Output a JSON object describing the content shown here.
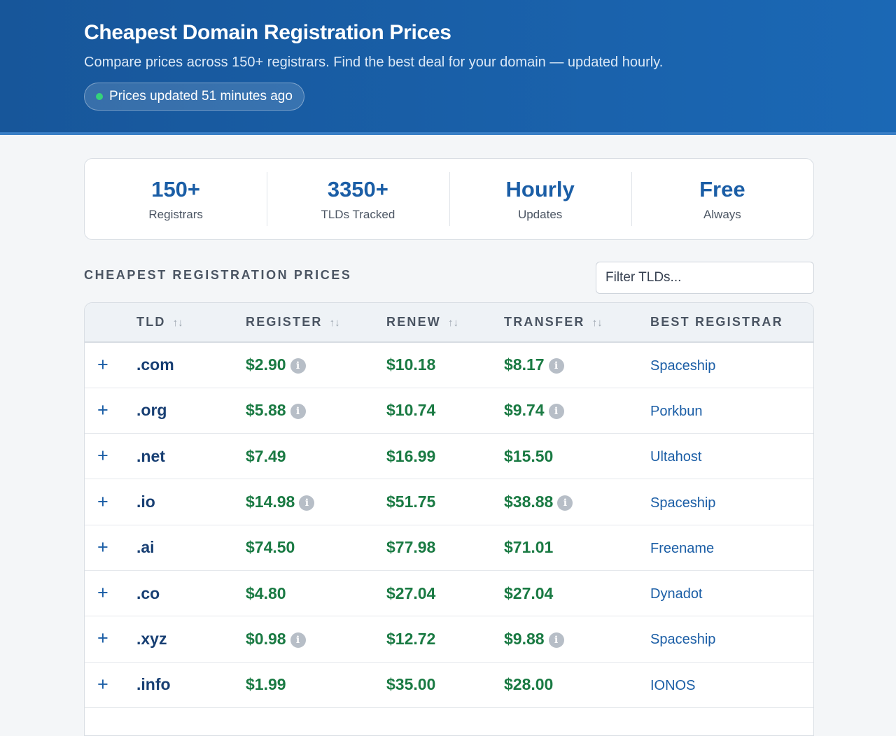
{
  "header": {
    "title": "Cheapest Domain Registration Prices",
    "subtitle": "Compare prices across 150+ registrars. Find the best deal for your domain — updated hourly.",
    "status_badge": "Prices updated 51 minutes ago",
    "status_color": "#34d27a"
  },
  "stats": [
    {
      "value": "150+",
      "label": "Registrars"
    },
    {
      "value": "3350+",
      "label": "TLDs Tracked"
    },
    {
      "value": "Hourly",
      "label": "Updates"
    },
    {
      "value": "Free",
      "label": "Always"
    }
  ],
  "section": {
    "title": "CHEAPEST REGISTRATION PRICES",
    "filter_placeholder": "Filter TLDs..."
  },
  "table": {
    "columns": {
      "tld": "TLD",
      "register": "REGISTER",
      "renew": "RENEW",
      "transfer": "TRANSFER",
      "best_registrar": "BEST REGISTRAR"
    },
    "sort_icon": "↑↓",
    "expand_icon": "+",
    "info_icon": "i",
    "rows": [
      {
        "tld": ".com",
        "register": "$2.90",
        "register_info": true,
        "renew": "$10.18",
        "transfer": "$8.17",
        "transfer_info": true,
        "registrar": "Spaceship"
      },
      {
        "tld": ".org",
        "register": "$5.88",
        "register_info": true,
        "renew": "$10.74",
        "transfer": "$9.74",
        "transfer_info": true,
        "registrar": "Porkbun"
      },
      {
        "tld": ".net",
        "register": "$7.49",
        "register_info": false,
        "renew": "$16.99",
        "transfer": "$15.50",
        "transfer_info": false,
        "registrar": "Ultahost"
      },
      {
        "tld": ".io",
        "register": "$14.98",
        "register_info": true,
        "renew": "$51.75",
        "transfer": "$38.88",
        "transfer_info": true,
        "registrar": "Spaceship"
      },
      {
        "tld": ".ai",
        "register": "$74.50",
        "register_info": false,
        "renew": "$77.98",
        "transfer": "$71.01",
        "transfer_info": false,
        "registrar": "Freename"
      },
      {
        "tld": ".co",
        "register": "$4.80",
        "register_info": false,
        "renew": "$27.04",
        "transfer": "$27.04",
        "transfer_info": false,
        "registrar": "Dynadot"
      },
      {
        "tld": ".xyz",
        "register": "$0.98",
        "register_info": true,
        "renew": "$12.72",
        "transfer": "$9.88",
        "transfer_info": true,
        "registrar": "Spaceship"
      },
      {
        "tld": ".info",
        "register": "$1.99",
        "register_info": false,
        "renew": "$35.00",
        "transfer": "$28.00",
        "transfer_info": false,
        "registrar": "IONOS"
      }
    ]
  },
  "colors": {
    "brand": "#1b5ea6",
    "price": "#1a7a43",
    "tld": "#183f73"
  }
}
